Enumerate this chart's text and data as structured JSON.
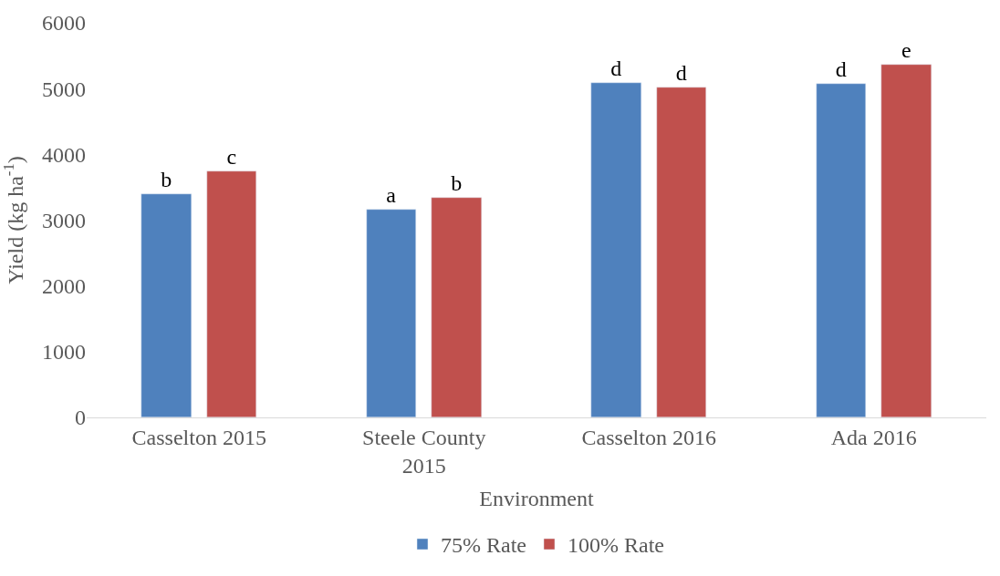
{
  "chart_data": {
    "type": "bar",
    "xlabel": "Environment",
    "ylabel": "Yield (kg ha$^{-1}$)",
    "categories": [
      "Casselton 2015",
      "Steele County 2015",
      "Casselton 2016",
      "Ada 2016"
    ],
    "series": [
      {
        "name": "75% Rate",
        "color": "#4f81bd",
        "values": [
          3390,
          3160,
          5090,
          5070
        ],
        "value_labels": [
          "b",
          "a",
          "d",
          "d"
        ]
      },
      {
        "name": "100% Rate",
        "color": "#c0504d",
        "values": [
          3740,
          3340,
          5010,
          5360
        ],
        "value_labels": [
          "c",
          "b",
          "d",
          "e"
        ]
      }
    ],
    "ylim": [
      0,
      6000
    ],
    "yticks": [
      0,
      1000,
      2000,
      3000,
      4000,
      5000,
      6000
    ],
    "legend": "bottom"
  }
}
